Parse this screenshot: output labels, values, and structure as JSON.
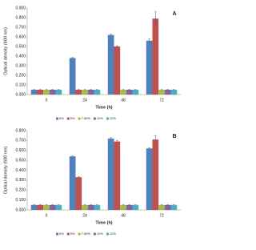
{
  "chart_data": [
    {
      "type": "bar",
      "panel_label": "A",
      "y_label": "Optical density (600 nm)",
      "x_label": "Time (h)",
      "categories": [
        "0",
        "24",
        "48",
        "72"
      ],
      "series": [
        {
          "name": "0%",
          "color": "#4f81bd",
          "values": [
            0.05,
            0.38,
            0.62,
            0.56
          ],
          "errors": [
            0.003,
            0.005,
            0.008,
            0.02
          ]
        },
        {
          "name": "5%",
          "color": "#c0504d",
          "values": [
            0.05,
            0.05,
            0.5,
            0.79
          ],
          "errors": [
            0.003,
            0.003,
            0.008,
            0.07
          ]
        },
        {
          "name": "7.50%",
          "color": "#9bbb59",
          "values": [
            0.05,
            0.05,
            0.05,
            0.05
          ],
          "errors": [
            0.003,
            0.003,
            0.003,
            0.003
          ]
        },
        {
          "name": "10%",
          "color": "#8064a2",
          "values": [
            0.05,
            0.05,
            0.05,
            0.05
          ],
          "errors": [
            0.003,
            0.003,
            0.003,
            0.003
          ]
        },
        {
          "name": "12%",
          "color": "#4bacc6",
          "values": [
            0.05,
            0.05,
            0.05,
            0.05
          ],
          "errors": [
            0.003,
            0.003,
            0.003,
            0.003
          ]
        }
      ],
      "ylim": [
        0,
        0.9
      ],
      "yticks": [
        {
          "value": 0,
          "label": "0.000"
        },
        {
          "value": 0.1,
          "label": "0.100"
        },
        {
          "value": 0.2,
          "label": "0.200"
        },
        {
          "value": 0.3,
          "label": "0.300"
        },
        {
          "value": 0.4,
          "label": "0.400"
        },
        {
          "value": 0.5,
          "label": "0.500"
        },
        {
          "value": 0.6,
          "label": "0.600"
        },
        {
          "value": 0.7,
          "label": "0.700"
        },
        {
          "value": 0.8,
          "label": "0.800"
        },
        {
          "value": 0.9,
          "label": "0.900"
        }
      ],
      "legend": "bottom"
    },
    {
      "type": "bar",
      "panel_label": "B",
      "y_label": "Optical density (600 nm)",
      "x_label": "Time (h)",
      "categories": [
        "0",
        "24",
        "48",
        "72"
      ],
      "series": [
        {
          "name": "0%",
          "color": "#4f81bd",
          "values": [
            0.05,
            0.54,
            0.72,
            0.62
          ],
          "errors": [
            0.003,
            0.005,
            0.01,
            0.008
          ]
        },
        {
          "name": "5%",
          "color": "#c0504d",
          "values": [
            0.05,
            0.33,
            0.69,
            0.71
          ],
          "errors": [
            0.003,
            0.005,
            0.01,
            0.04
          ]
        },
        {
          "name": "7.50%",
          "color": "#9bbb59",
          "values": [
            0.05,
            0.05,
            0.05,
            0.05
          ],
          "errors": [
            0.003,
            0.003,
            0.003,
            0.003
          ]
        },
        {
          "name": "10%",
          "color": "#8064a2",
          "values": [
            0.05,
            0.05,
            0.05,
            0.05
          ],
          "errors": [
            0.003,
            0.003,
            0.003,
            0.003
          ]
        },
        {
          "name": "12%",
          "color": "#4bacc6",
          "values": [
            0.05,
            0.05,
            0.05,
            0.05
          ],
          "errors": [
            0.003,
            0.003,
            0.003,
            0.003
          ]
        }
      ],
      "ylim": [
        0,
        0.8
      ],
      "yticks": [
        {
          "value": 0,
          "label": "0.000"
        },
        {
          "value": 0.1,
          "label": "0.100"
        },
        {
          "value": 0.2,
          "label": "0.200"
        },
        {
          "value": 0.3,
          "label": "0.300"
        },
        {
          "value": 0.4,
          "label": "0.400"
        },
        {
          "value": 0.5,
          "label": "0.500"
        },
        {
          "value": 0.6,
          "label": "0.600"
        },
        {
          "value": 0.7,
          "label": "0.700"
        },
        {
          "value": 0.8,
          "label": "0.800"
        }
      ],
      "legend": "bottom"
    }
  ]
}
